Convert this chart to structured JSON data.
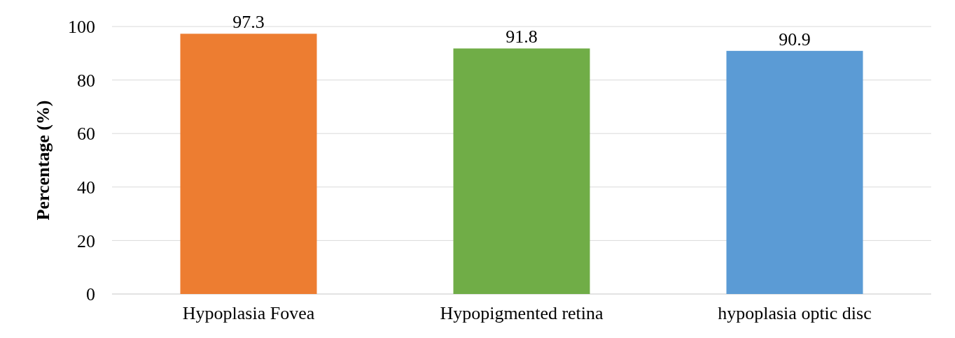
{
  "chart_data": {
    "type": "bar",
    "ylabel": "Percentage (%)",
    "categories": [
      "Hypoplasia Fovea",
      "Hypopigmented retina",
      "hypoplasia optic disc"
    ],
    "values": [
      97.3,
      91.8,
      90.9
    ],
    "colors": [
      "#ed7d31",
      "#70ad47",
      "#5b9bd5"
    ],
    "ylim": [
      0,
      100
    ],
    "yticks": [
      0,
      20,
      40,
      60,
      80,
      100
    ],
    "grid": "y",
    "data_labels": true
  }
}
